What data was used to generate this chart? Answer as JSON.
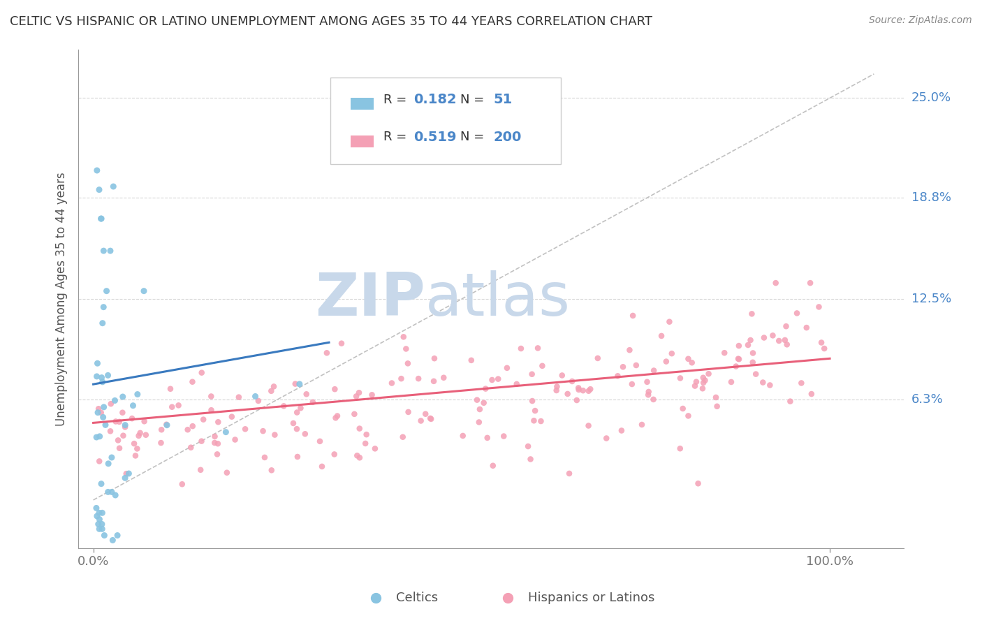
{
  "title": "CELTIC VS HISPANIC OR LATINO UNEMPLOYMENT AMONG AGES 35 TO 44 YEARS CORRELATION CHART",
  "source": "Source: ZipAtlas.com",
  "ylabel": "Unemployment Among Ages 35 to 44 years",
  "blue_color": "#89c4e1",
  "pink_color": "#f4a0b5",
  "blue_line_color": "#3a7abf",
  "pink_line_color": "#e8607a",
  "ref_line_color": "#bbbbbb",
  "legend_R_blue": "0.182",
  "legend_N_blue": "51",
  "legend_R_pink": "0.519",
  "legend_N_pink": "200",
  "watermark_ZIP": "ZIP",
  "watermark_atlas": "atlas",
  "watermark_color": "#c8d8ea",
  "background_color": "#ffffff",
  "grid_color": "#cccccc",
  "ytick_vals": [
    0.0625,
    0.125,
    0.188,
    0.25
  ],
  "ytick_labels": [
    "6.3%",
    "12.5%",
    "18.8%",
    "25.0%"
  ],
  "ylim_low": -0.03,
  "ylim_high": 0.28,
  "xlim_low": -0.02,
  "xlim_high": 1.1
}
